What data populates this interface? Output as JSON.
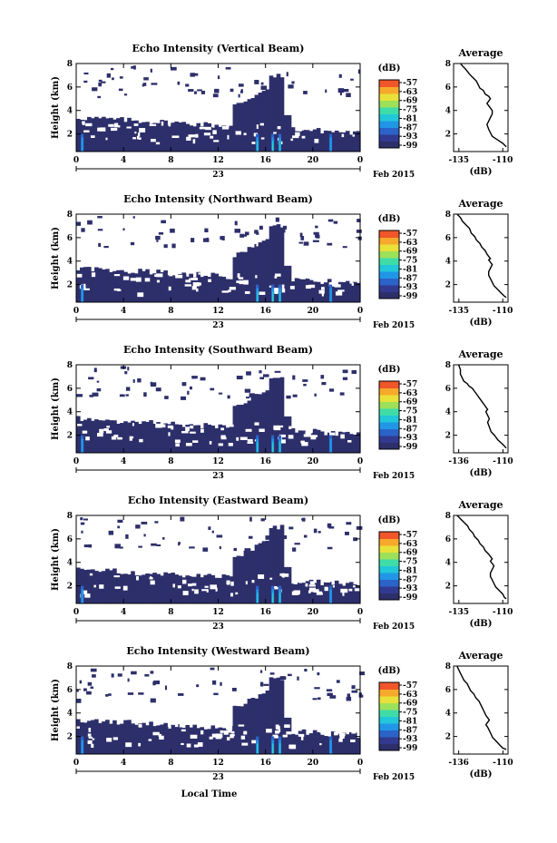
{
  "figure": {
    "xlabel": "Local Time",
    "colorbar_unit": "(dB)",
    "colorbar_ticks": [
      "-57",
      "-63",
      "-69",
      "-75",
      "-81",
      "-87",
      "-93",
      "-99"
    ],
    "colormap": [
      "#2d2f6b",
      "#323a8f",
      "#2b63c9",
      "#2196e6",
      "#22c7d9",
      "#3fdca8",
      "#9de05a",
      "#e8e13a",
      "#f7a92c",
      "#f0562a"
    ]
  },
  "chart_data": [
    {
      "type": "heatmap",
      "title": "Echo Intensity (Vertical Beam)",
      "ylabel": "Height (km)",
      "y_ticks": [
        "2",
        "4",
        "6",
        "8"
      ],
      "ylim": [
        0.5,
        8
      ],
      "x_ticks": [
        "0",
        "4",
        "8",
        "12",
        "16",
        "20",
        "0"
      ],
      "xlim": [
        0,
        24
      ],
      "date_tick": "23",
      "date_label": "Feb 2015",
      "colorbar_range": [
        -99,
        -57
      ],
      "profile": {
        "title": "Average",
        "xlabel": "(dB)",
        "x_ticks": [
          "-135",
          "-110"
        ],
        "xlim": [
          -138,
          -107
        ],
        "y_ticks": [
          "2",
          "4",
          "6",
          "8"
        ],
        "ylim": [
          0.5,
          8
        ],
        "x": [
          -134,
          -133,
          -131,
          -129,
          -127,
          -125,
          -124,
          -123,
          -121,
          -120,
          -118,
          -117,
          -118,
          -119,
          -118,
          -117,
          -116,
          -116,
          -117,
          -118,
          -119,
          -118,
          -117,
          -116,
          -113,
          -110,
          -108
        ],
        "y": [
          8,
          7.8,
          7.5,
          7.1,
          6.8,
          6.5,
          6.2,
          5.9,
          5.7,
          5.4,
          5.2,
          5,
          4.8,
          4.6,
          4.4,
          4.2,
          4,
          3.7,
          3.4,
          3.1,
          2.8,
          2.4,
          2.1,
          1.8,
          1.5,
          1.2,
          0.9
        ]
      }
    },
    {
      "type": "heatmap",
      "title": "Echo Intensity (Northward Beam)",
      "ylabel": "Height (km)",
      "y_ticks": [
        "2",
        "4",
        "6",
        "8"
      ],
      "ylim": [
        0.5,
        8
      ],
      "x_ticks": [
        "0",
        "4",
        "8",
        "12",
        "16",
        "20",
        "0"
      ],
      "xlim": [
        0,
        24
      ],
      "date_tick": "23",
      "date_label": "Feb 2015",
      "colorbar_range": [
        -99,
        -57
      ],
      "profile": {
        "title": "Average",
        "xlabel": "(dB)",
        "x_ticks": [
          "-135",
          "-110"
        ],
        "xlim": [
          -138,
          -107
        ],
        "y_ticks": [
          "2",
          "4",
          "6",
          "8"
        ],
        "ylim": [
          0.5,
          8
        ],
        "x": [
          -136,
          -134,
          -133,
          -131,
          -129,
          -128,
          -126,
          -125,
          -123,
          -122,
          -120,
          -119,
          -118,
          -117,
          -118,
          -117,
          -116,
          -117,
          -118,
          -118,
          -117,
          -116,
          -115,
          -113,
          -111,
          -109,
          -108
        ],
        "y": [
          8,
          7.7,
          7.4,
          7.1,
          6.8,
          6.4,
          6.1,
          5.8,
          5.5,
          5.2,
          4.9,
          4.6,
          4.4,
          4.2,
          4.1,
          3.9,
          3.7,
          3.4,
          3.1,
          2.8,
          2.5,
          2.2,
          1.9,
          1.6,
          1.3,
          1.0,
          0.9
        ]
      }
    },
    {
      "type": "heatmap",
      "title": "Echo Intensity (Southward Beam)",
      "ylabel": "Height (km)",
      "y_ticks": [
        "2",
        "4",
        "6",
        "8"
      ],
      "ylim": [
        0.5,
        8
      ],
      "x_ticks": [
        "0",
        "4",
        "8",
        "12",
        "16",
        "20",
        "0"
      ],
      "xlim": [
        0,
        24
      ],
      "date_tick": "23",
      "date_label": "Feb 2015",
      "colorbar_range": [
        -99,
        -57
      ],
      "profile": {
        "title": "Average",
        "xlabel": "(dB)",
        "x_ticks": [
          "-136",
          "-110"
        ],
        "xlim": [
          -139,
          -107
        ],
        "y_ticks": [
          "2",
          "4",
          "6",
          "8"
        ],
        "ylim": [
          0.5,
          8
        ],
        "x": [
          -136,
          -135,
          -135,
          -134,
          -133,
          -131,
          -130,
          -128,
          -127,
          -126,
          -125,
          -124,
          -123,
          -122,
          -121,
          -120,
          -119,
          -120,
          -119,
          -118,
          -119,
          -118,
          -117,
          -115,
          -113,
          -110,
          -108
        ],
        "y": [
          8,
          7.6,
          7.2,
          6.9,
          6.6,
          6.4,
          6.2,
          6.0,
          5.8,
          5.6,
          5.4,
          5.2,
          5.0,
          4.8,
          4.6,
          4.4,
          4.2,
          4.0,
          3.7,
          3.4,
          3.1,
          2.7,
          2.3,
          2.0,
          1.6,
          1.2,
          0.9
        ]
      }
    },
    {
      "type": "heatmap",
      "title": "Echo Intensity (Eastward Beam)",
      "ylabel": "Height (km)",
      "y_ticks": [
        "2",
        "4",
        "6",
        "8"
      ],
      "ylim": [
        0.5,
        8
      ],
      "x_ticks": [
        "0",
        "4",
        "8",
        "12",
        "16",
        "20",
        "0"
      ],
      "xlim": [
        0,
        24
      ],
      "date_tick": "23",
      "date_label": "Feb 2015",
      "colorbar_range": [
        -99,
        -57
      ],
      "profile": {
        "title": "Average",
        "xlabel": "(dB)",
        "x_ticks": [
          "-135",
          "-110"
        ],
        "xlim": [
          -138,
          -107
        ],
        "y_ticks": [
          "2",
          "4",
          "6",
          "8"
        ],
        "ylim": [
          0.5,
          8
        ],
        "x": [
          -136,
          -134,
          -132,
          -130,
          -129,
          -127,
          -126,
          -124,
          -123,
          -121,
          -120,
          -118,
          -117,
          -116,
          -117,
          -116,
          -115,
          -116,
          -117,
          -117,
          -116,
          -115,
          -114,
          -112,
          -110,
          -109,
          -108
        ],
        "y": [
          8,
          7.7,
          7.4,
          7.1,
          6.8,
          6.5,
          6.2,
          5.9,
          5.6,
          5.3,
          5.0,
          4.7,
          4.5,
          4.3,
          4.1,
          3.9,
          3.7,
          3.4,
          3.1,
          2.8,
          2.5,
          2.2,
          1.9,
          1.6,
          1.3,
          1.0,
          0.9
        ]
      }
    },
    {
      "type": "heatmap",
      "title": "Echo Intensity (Westward Beam)",
      "ylabel": "Height (km)",
      "y_ticks": [
        "2",
        "4",
        "6",
        "8"
      ],
      "ylim": [
        0.5,
        8
      ],
      "x_ticks": [
        "0",
        "4",
        "8",
        "12",
        "16",
        "20",
        "0"
      ],
      "xlim": [
        0,
        24
      ],
      "date_tick": "23",
      "date_label": "Feb 2015",
      "colorbar_range": [
        -99,
        -57
      ],
      "profile": {
        "title": "Average",
        "xlabel": "(dB)",
        "x_ticks": [
          "-136",
          "-110"
        ],
        "xlim": [
          -139,
          -107
        ],
        "y_ticks": [
          "2",
          "4",
          "6",
          "8"
        ],
        "ylim": [
          0.5,
          8
        ],
        "x": [
          -137,
          -136,
          -135,
          -134,
          -133,
          -131,
          -130,
          -129,
          -127,
          -126,
          -124,
          -123,
          -122,
          -121,
          -120,
          -119,
          -118,
          -119,
          -120,
          -119,
          -118,
          -117,
          -116,
          -114,
          -112,
          -110,
          -108
        ],
        "y": [
          8,
          7.7,
          7.4,
          7.1,
          6.8,
          6.5,
          6.2,
          5.9,
          5.6,
          5.3,
          5.0,
          4.7,
          4.4,
          4.1,
          3.8,
          3.6,
          3.4,
          3.2,
          3.0,
          2.8,
          2.5,
          2.2,
          1.9,
          1.6,
          1.3,
          1.0,
          0.9
        ]
      }
    }
  ]
}
